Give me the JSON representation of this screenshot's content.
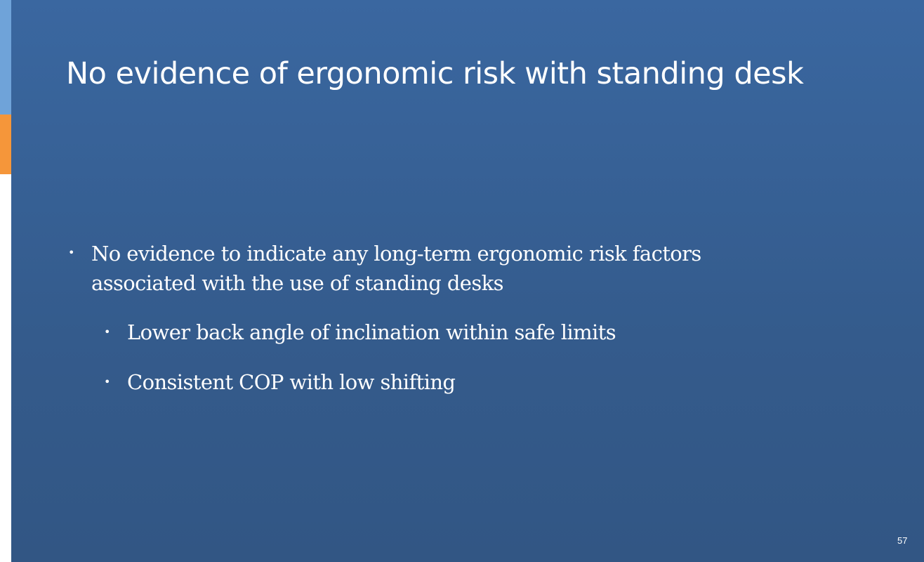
{
  "slide": {
    "title": "No evidence of ergonomic risk with standing desk",
    "bullets": [
      {
        "lines": [
          "No evidence to indicate any long-term ergonomic risk factors",
          "associated with the use of standing desks"
        ]
      }
    ],
    "sub_bullets": [
      "Lower back angle of inclination within safe limits",
      "Consistent COP with low shifting"
    ],
    "bullet_glyph": "•",
    "page_number": "57"
  },
  "colors": {
    "background_top": "#3a67a0",
    "background_bottom": "#325684",
    "accent_blue": "#6fa3d9",
    "accent_orange": "#f5963a",
    "text": "#ffffff"
  }
}
